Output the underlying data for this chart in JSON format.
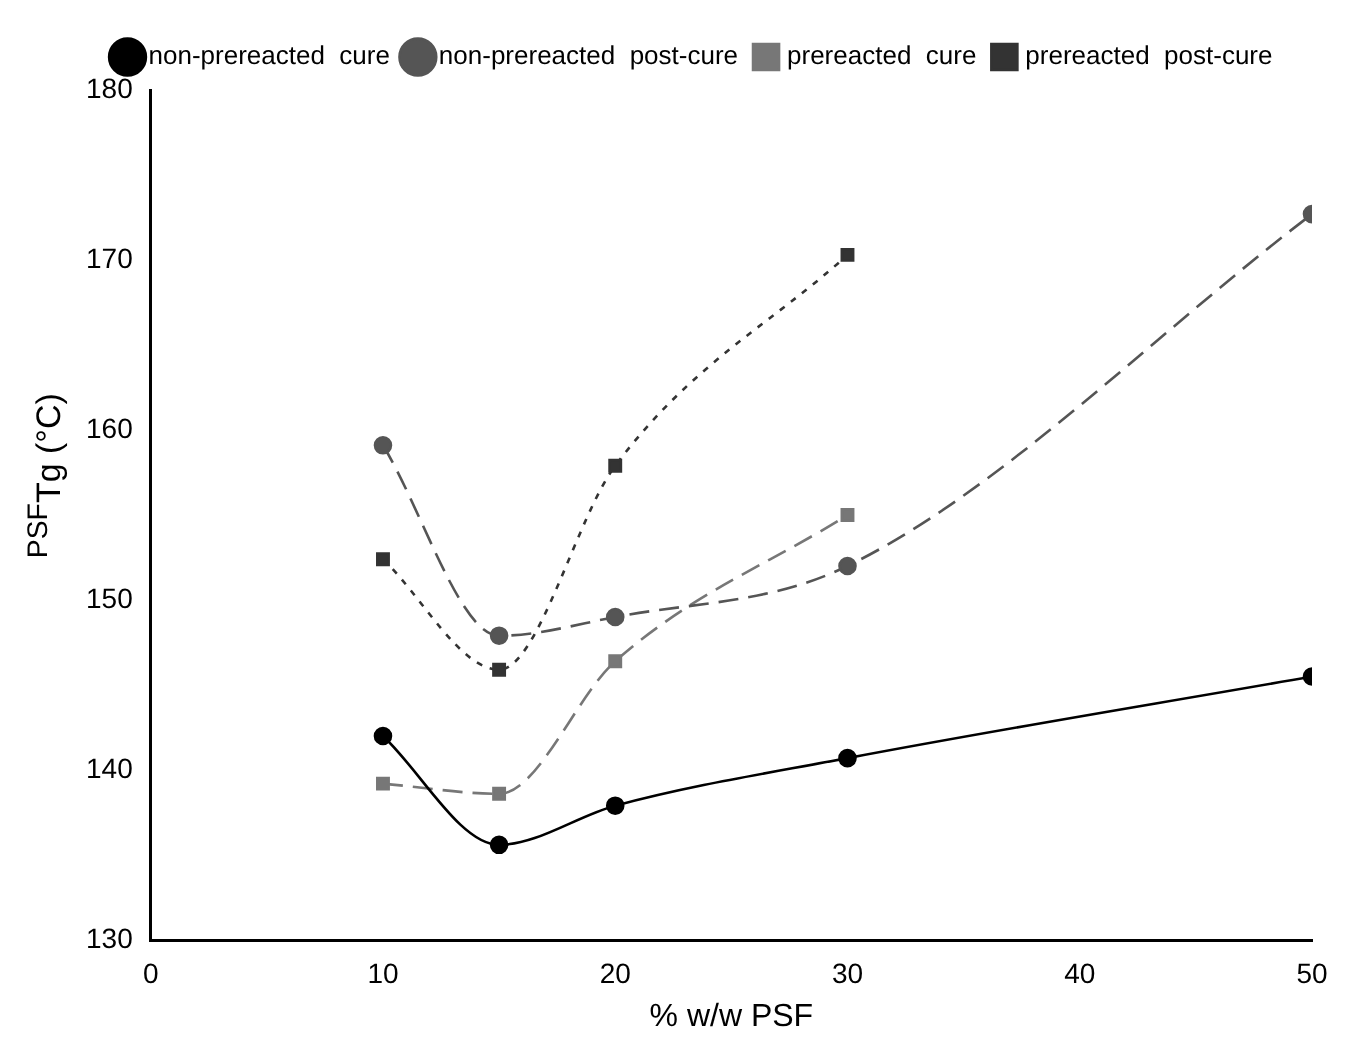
{
  "chart_data": {
    "type": "line",
    "xlabel": "% w/w PSF",
    "ylabel": "$^{PSF}$Tg (°C)",
    "x": [
      10,
      15,
      20,
      30,
      50
    ],
    "series": [
      {
        "name": "non-prereacted  cure",
        "color": "#000000",
        "marker": "circle",
        "line_style": "solid",
        "values": [
          142.0,
          135.6,
          137.9,
          140.7,
          145.5
        ]
      },
      {
        "name": "non-prereacted  post-cure",
        "color": "#555555",
        "marker": "circle",
        "line_style": "dashed",
        "values": [
          159.1,
          147.9,
          149.0,
          152.0,
          172.7
        ]
      },
      {
        "name": "prereacted  cure",
        "color": "#777777",
        "marker": "square",
        "line_style": "dashed",
        "values": [
          139.2,
          138.6,
          146.4,
          155.0,
          null
        ]
      },
      {
        "name": "prereacted  post-cure",
        "color": "#333333",
        "marker": "square",
        "line_style": "dotted",
        "values": [
          152.4,
          145.9,
          157.9,
          170.3,
          null
        ]
      }
    ],
    "xlim": [
      0,
      50
    ],
    "xticks": [
      0,
      10,
      20,
      30,
      40,
      50
    ],
    "ylim": [
      130,
      180
    ],
    "yticks": [
      130,
      140,
      150,
      160,
      170,
      180
    ],
    "grid": false,
    "legend": "top"
  }
}
